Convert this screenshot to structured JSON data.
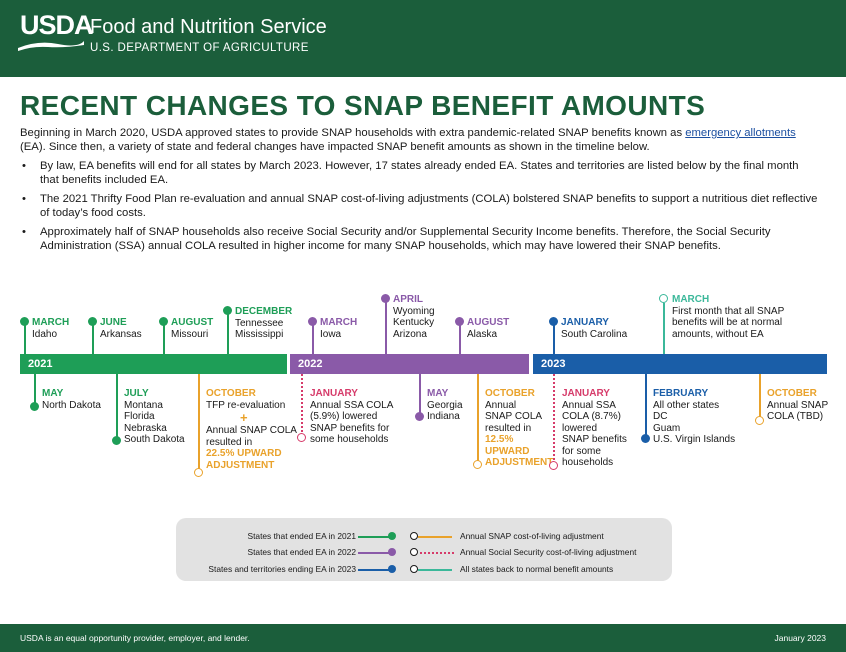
{
  "header": {
    "logo_text": "USDA",
    "agency": "Food and Nutrition Service",
    "department": "U.S. DEPARTMENT OF AGRICULTURE"
  },
  "title": "RECENT CHANGES TO SNAP BENEFIT AMOUNTS",
  "intro": {
    "before_link": "Beginning in March 2020, USDA approved states to provide SNAP households with extra pandemic-related SNAP benefits known as ",
    "link": "emergency allotments",
    "after_link": " (EA). Since then, a variety of state and federal changes have impacted SNAP benefit amounts as shown in the timeline below."
  },
  "bullets": [
    "By law, EA benefits will end for all states by March 2023. However, 17 states already ended EA. States and territories are listed below by the final month that benefits included EA.",
    "The 2021 Thrifty Food Plan re-evaluation and annual SNAP cost-of-living adjustments (COLA) bolstered SNAP benefits to support a nutritious diet reflective of today’s food costs.",
    "Approximately half of SNAP households also receive Social Security and/or Supplemental Security Income benefits. Therefore, the Social Security Administration (SSA) annual COLA resulted in higher income for many SNAP households, which may have lowered their SNAP benefits."
  ],
  "timeline": {
    "years": [
      "2021",
      "2022",
      "2023"
    ],
    "events": {
      "mar21": {
        "month": "MARCH",
        "text": "Idaho"
      },
      "jun21": {
        "month": "JUNE",
        "text": "Arkansas"
      },
      "aug21": {
        "month": "AUGUST",
        "text": "Missouri"
      },
      "dec21": {
        "month": "DECEMBER",
        "lines": [
          "Tennessee",
          "Mississippi"
        ]
      },
      "may21": {
        "month": "MAY",
        "text": "North Dakota"
      },
      "jul21": {
        "month": "JULY",
        "lines": [
          "Montana",
          "Florida",
          "Nebraska",
          "South Dakota"
        ]
      },
      "oct21": {
        "month": "OCTOBER",
        "line1": "TFP re-evaluation",
        "plus": "+",
        "line2": "Annual SNAP COLA",
        "line3": "resulted in",
        "highlight1": "22.5% UPWARD",
        "highlight2": "ADJUSTMENT"
      },
      "mar22": {
        "month": "MARCH",
        "text": "Iowa"
      },
      "apr22": {
        "month": "APRIL",
        "lines": [
          "Wyoming",
          "Kentucky",
          "Arizona"
        ]
      },
      "aug22": {
        "month": "AUGUST",
        "text": "Alaska"
      },
      "jan22": {
        "month": "JANUARY",
        "lines": [
          "Annual SSA COLA",
          "(5.9%) lowered",
          "SNAP benefits for",
          "some households"
        ]
      },
      "may22": {
        "month": "MAY",
        "lines": [
          "Georgia",
          "Indiana"
        ]
      },
      "oct22": {
        "month": "OCTOBER",
        "lines": [
          "Annual",
          "SNAP COLA",
          "resulted in"
        ],
        "highlight": [
          "12.5%",
          "UPWARD",
          "ADJUSTMENT"
        ]
      },
      "jan23": {
        "month": "JANUARY",
        "text": "South Carolina"
      },
      "mar23": {
        "month": "MARCH",
        "lines": [
          "First month that all SNAP",
          "benefits will be at normal",
          "amounts, without EA"
        ]
      },
      "jan23b": {
        "month": "JANUARY",
        "lines": [
          "Annual SSA",
          "COLA (8.7%)",
          "lowered",
          "SNAP benefits",
          "for some",
          "households"
        ]
      },
      "feb23": {
        "month": "FEBRUARY",
        "lines": [
          "All other states",
          "DC",
          "Guam",
          "U.S. Virgin Islands"
        ]
      },
      "oct23": {
        "month": "OCTOBER",
        "lines": [
          "Annual SNAP",
          "COLA (TBD)"
        ]
      }
    }
  },
  "legend": {
    "left": [
      "States that ended EA in 2021",
      "States that ended EA in 2022",
      "States and territories ending EA in 2023"
    ],
    "right": [
      "Annual SNAP cost-of-living adjustment",
      "Annual Social Security cost-of-living adjustment",
      "All states back to normal benefit amounts"
    ]
  },
  "footer": {
    "left": "USDA is an equal opportunity provider, employer, and lender.",
    "right": "January 2023"
  },
  "colors": {
    "brand_green": "#1b5e3b",
    "year_2021": "#1e9e57",
    "year_2022": "#8a5aa8",
    "year_2023": "#1a5ea8",
    "snap_cola": "#e9a22b",
    "ssa_cola": "#d63b6a",
    "normal_benefits": "#3bb89a"
  }
}
